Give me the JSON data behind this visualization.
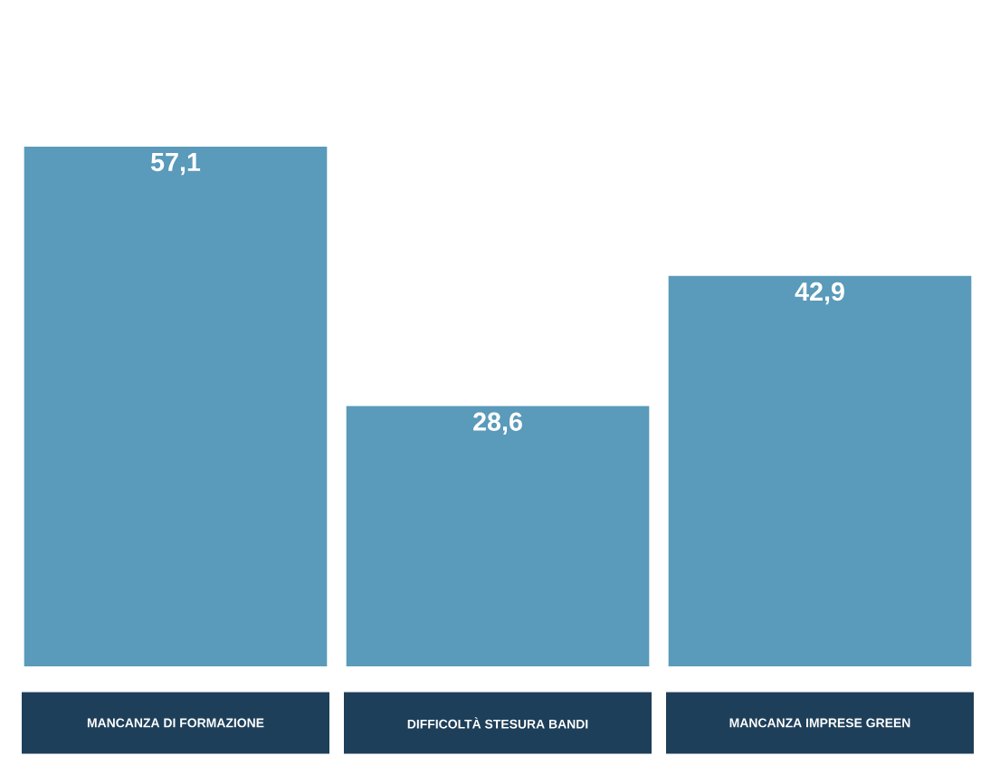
{
  "chart_data": {
    "type": "bar",
    "categories": [
      "MANCANZA DI FORMAZIONE",
      "DIFFICOLTÀ STESURA BANDI",
      "MANCANZA IMPRESE GREEN"
    ],
    "values": [
      57.1,
      28.6,
      42.9
    ],
    "value_labels": [
      "57,1",
      "28,6",
      "42,9"
    ],
    "color": "#5a9aba"
  }
}
